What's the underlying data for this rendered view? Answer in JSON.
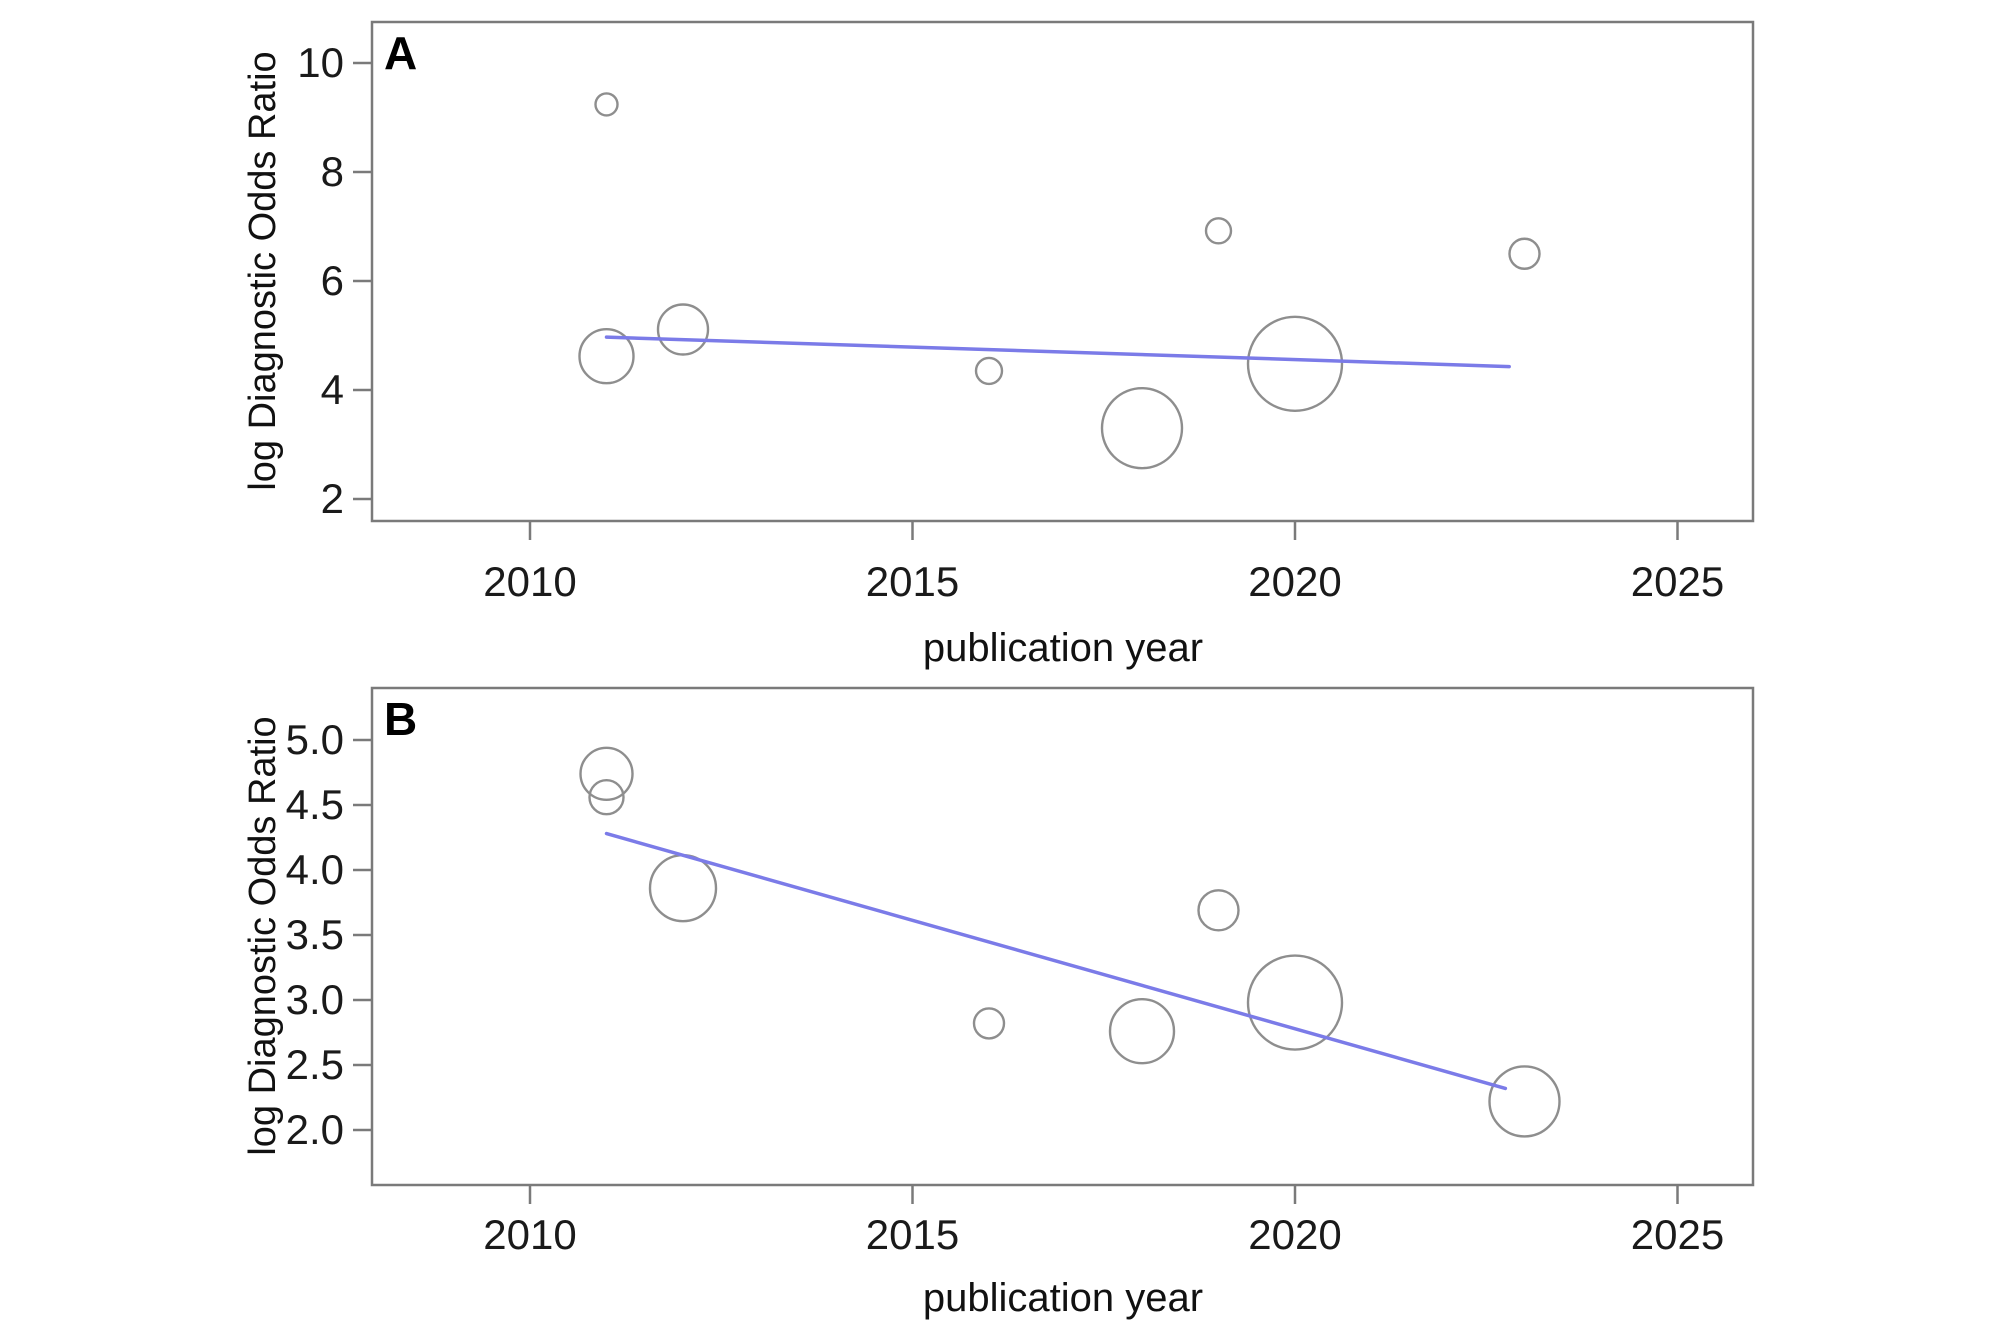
{
  "figure": {
    "background": "#ffffff",
    "regression_line_color": "#7b7be8",
    "bubble_stroke_color": "#8e8e8e",
    "axis_color": "#7a7a7a",
    "tick_label_color": "#1a1a1a",
    "title_color": "#111111"
  },
  "chart_data": [
    {
      "panel_label": "A",
      "type": "scatter",
      "subtype": "bubble-meta-regression",
      "xlabel": "publication year",
      "ylabel": "log Diagnostic Odds Ratio",
      "xlim": [
        2007.9,
        2026.0
      ],
      "ylim": [
        1.6,
        10.75
      ],
      "xticks": [
        2010,
        2015,
        2020,
        2025
      ],
      "xtick_labels": [
        "2010",
        "2015",
        "2020",
        "2025"
      ],
      "ytick_values": [
        2,
        4,
        6,
        8,
        10
      ],
      "ytick_labels": [
        "2",
        "4",
        "6",
        "8",
        "10"
      ],
      "grid": false,
      "legend": "none",
      "points": [
        {
          "year": 2011,
          "log_dor": 9.24,
          "bubble_r": 11
        },
        {
          "year": 2011,
          "log_dor": 4.62,
          "bubble_r": 27
        },
        {
          "year": 2012,
          "log_dor": 5.11,
          "bubble_r": 25
        },
        {
          "year": 2016,
          "log_dor": 4.35,
          "bubble_r": 13
        },
        {
          "year": 2018,
          "log_dor": 3.3,
          "bubble_r": 40
        },
        {
          "year": 2019,
          "log_dor": 6.92,
          "bubble_r": 12.5
        },
        {
          "year": 2020,
          "log_dor": 4.48,
          "bubble_r": 47
        },
        {
          "year": 2023,
          "log_dor": 6.5,
          "bubble_r": 15
        }
      ],
      "regression_line": {
        "x1": 2011.0,
        "y1": 4.97,
        "x2": 2022.8,
        "y2": 4.43
      }
    },
    {
      "panel_label": "B",
      "type": "scatter",
      "subtype": "bubble-meta-regression",
      "xlabel": "publication year",
      "ylabel": "log Diagnostic Odds Ratio",
      "xlim": [
        2007.9,
        2026.0
      ],
      "ylim": [
        1.58,
        5.4
      ],
      "xticks": [
        2010,
        2015,
        2020,
        2025
      ],
      "xtick_labels": [
        "2010",
        "2015",
        "2020",
        "2025"
      ],
      "ytick_values": [
        2.0,
        2.5,
        3.0,
        3.5,
        4.0,
        4.5,
        5.0
      ],
      "ytick_labels": [
        "2.0",
        "2.5",
        "3.0",
        "3.5",
        "4.0",
        "4.5",
        "5.0"
      ],
      "grid": false,
      "legend": "none",
      "points": [
        {
          "year": 2011,
          "log_dor": 4.74,
          "bubble_r": 26
        },
        {
          "year": 2011,
          "log_dor": 4.56,
          "bubble_r": 17
        },
        {
          "year": 2012,
          "log_dor": 3.86,
          "bubble_r": 33
        },
        {
          "year": 2016,
          "log_dor": 2.82,
          "bubble_r": 15
        },
        {
          "year": 2018,
          "log_dor": 2.76,
          "bubble_r": 32
        },
        {
          "year": 2019,
          "log_dor": 3.69,
          "bubble_r": 20
        },
        {
          "year": 2020,
          "log_dor": 2.98,
          "bubble_r": 47
        },
        {
          "year": 2023,
          "log_dor": 2.22,
          "bubble_r": 35
        }
      ],
      "regression_line": {
        "x1": 2011.0,
        "y1": 4.28,
        "x2": 2022.75,
        "y2": 2.32
      }
    }
  ]
}
